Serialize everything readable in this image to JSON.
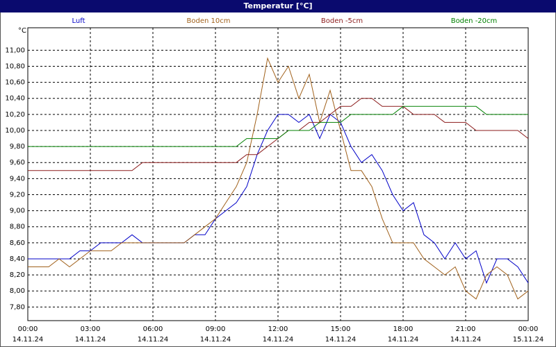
{
  "chart_data": {
    "type": "line",
    "title": "Temperatur [°C]",
    "ylabel": "°C",
    "x": [
      0,
      0.5,
      1,
      1.5,
      2,
      2.5,
      3,
      3.5,
      4,
      4.5,
      5,
      5.5,
      6,
      6.5,
      7,
      7.5,
      8,
      8.5,
      9,
      9.5,
      10,
      10.5,
      11,
      11.5,
      12,
      12.5,
      13,
      13.5,
      14,
      14.5,
      15,
      15.5,
      16,
      16.5,
      17,
      17.5,
      18,
      18.5,
      19,
      19.5,
      20,
      20.5,
      21,
      21.5,
      22,
      22.5,
      23,
      23.5,
      24
    ],
    "xlim": [
      0,
      24
    ],
    "xticks": [
      {
        "value": 0,
        "label": "00:00",
        "date": "14.11.24"
      },
      {
        "value": 3,
        "label": "03:00",
        "date": "14.11.24"
      },
      {
        "value": 6,
        "label": "06:00",
        "date": "14.11.24"
      },
      {
        "value": 9,
        "label": "09:00",
        "date": "14.11.24"
      },
      {
        "value": 12,
        "label": "12:00",
        "date": "14.11.24"
      },
      {
        "value": 15,
        "label": "15:00",
        "date": "14.11.24"
      },
      {
        "value": 18,
        "label": "18:00",
        "date": "14.11.24"
      },
      {
        "value": 21,
        "label": "21:00",
        "date": "14.11.24"
      },
      {
        "value": 24,
        "label": "00:00",
        "date": "15.11.24"
      }
    ],
    "ylim": [
      7.63,
      11.28
    ],
    "yticks": [
      {
        "value": 7.8,
        "label": "7,80"
      },
      {
        "value": 8.0,
        "label": "8,00"
      },
      {
        "value": 8.2,
        "label": "8,20"
      },
      {
        "value": 8.4,
        "label": "8,40"
      },
      {
        "value": 8.6,
        "label": "8,60"
      },
      {
        "value": 8.8,
        "label": "8,80"
      },
      {
        "value": 9.0,
        "label": "9,00"
      },
      {
        "value": 9.2,
        "label": "9,20"
      },
      {
        "value": 9.4,
        "label": "9,40"
      },
      {
        "value": 9.6,
        "label": "9,60"
      },
      {
        "value": 9.8,
        "label": "9,80"
      },
      {
        "value": 10.0,
        "label": "10,00"
      },
      {
        "value": 10.2,
        "label": "10,20"
      },
      {
        "value": 10.4,
        "label": "10,40"
      },
      {
        "value": 10.6,
        "label": "10,60"
      },
      {
        "value": 10.8,
        "label": "10,80"
      },
      {
        "value": 11.0,
        "label": "11,00"
      }
    ],
    "grid": true,
    "series": [
      {
        "name": "Luft",
        "color": "#0000c8",
        "values": [
          8.4,
          8.4,
          8.4,
          8.4,
          8.4,
          8.5,
          8.5,
          8.6,
          8.6,
          8.6,
          8.7,
          8.6,
          8.6,
          8.6,
          8.6,
          8.6,
          8.7,
          8.7,
          8.9,
          9.0,
          9.1,
          9.3,
          9.7,
          10.0,
          10.2,
          10.2,
          10.1,
          10.2,
          9.9,
          10.2,
          10.1,
          9.8,
          9.6,
          9.7,
          9.5,
          9.2,
          9.0,
          9.1,
          8.7,
          8.6,
          8.4,
          8.6,
          8.4,
          8.5,
          8.1,
          8.4,
          8.4,
          8.3,
          8.1
        ]
      },
      {
        "name": "Boden 10cm",
        "color": "#a0601a",
        "values": [
          8.3,
          8.3,
          8.3,
          8.4,
          8.3,
          8.4,
          8.5,
          8.5,
          8.5,
          8.6,
          8.6,
          8.6,
          8.6,
          8.6,
          8.6,
          8.6,
          8.7,
          8.8,
          8.9,
          9.1,
          9.3,
          9.6,
          10.2,
          10.9,
          10.6,
          10.8,
          10.4,
          10.7,
          10.1,
          10.5,
          10.0,
          9.5,
          9.5,
          9.3,
          8.9,
          8.6,
          8.6,
          8.6,
          8.4,
          8.3,
          8.2,
          8.3,
          8.0,
          7.9,
          8.2,
          8.3,
          8.2,
          7.9,
          8.0
        ]
      },
      {
        "name": "Boden -5cm",
        "color": "#8b1a1a",
        "values": [
          9.5,
          9.5,
          9.5,
          9.5,
          9.5,
          9.5,
          9.5,
          9.5,
          9.5,
          9.5,
          9.5,
          9.6,
          9.6,
          9.6,
          9.6,
          9.6,
          9.6,
          9.6,
          9.6,
          9.6,
          9.6,
          9.7,
          9.7,
          9.8,
          9.9,
          10.0,
          10.0,
          10.1,
          10.1,
          10.2,
          10.3,
          10.3,
          10.4,
          10.4,
          10.3,
          10.3,
          10.3,
          10.2,
          10.2,
          10.2,
          10.1,
          10.1,
          10.1,
          10.0,
          10.0,
          10.0,
          10.0,
          10.0,
          9.9
        ]
      },
      {
        "name": "Boden -20cm",
        "color": "#008000",
        "values": [
          9.8,
          9.8,
          9.8,
          9.8,
          9.8,
          9.8,
          9.8,
          9.8,
          9.8,
          9.8,
          9.8,
          9.8,
          9.8,
          9.8,
          9.8,
          9.8,
          9.8,
          9.8,
          9.8,
          9.8,
          9.8,
          9.9,
          9.9,
          9.9,
          9.9,
          10.0,
          10.0,
          10.0,
          10.1,
          10.1,
          10.1,
          10.2,
          10.2,
          10.2,
          10.2,
          10.2,
          10.3,
          10.3,
          10.3,
          10.3,
          10.3,
          10.3,
          10.3,
          10.3,
          10.2,
          10.2,
          10.2,
          10.2,
          10.2
        ]
      }
    ]
  }
}
